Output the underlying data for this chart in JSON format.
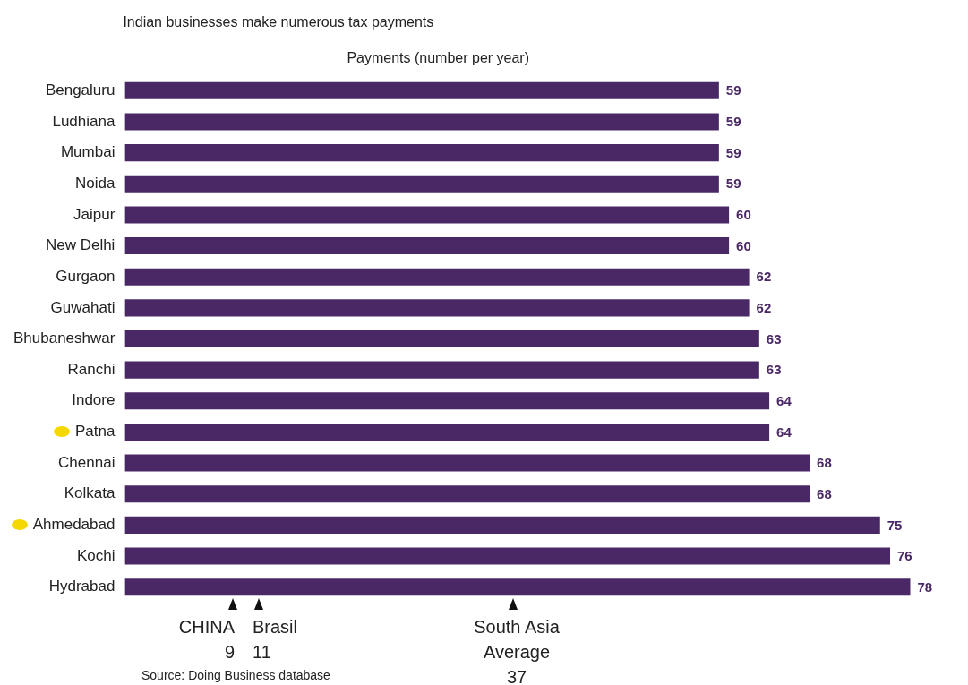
{
  "chart_data": {
    "type": "bar",
    "orientation": "horizontal",
    "title": "Indian businesses make numerous tax payments",
    "subtitle": "Payments (number per year)",
    "categories": [
      "Bengaluru",
      "Ludhiana",
      "Mumbai",
      "Noida",
      "Jaipur",
      "New Delhi",
      "Gurgaon",
      "Guwahati",
      "Bhubaneshwar",
      "Ranchi",
      "Indore",
      "Patna",
      "Chennai",
      "Kolkata",
      "Ahmedabad",
      "Kochi",
      "Hydrabad"
    ],
    "values": [
      59,
      59,
      59,
      59,
      60,
      60,
      62,
      62,
      63,
      63,
      64,
      64,
      68,
      68,
      75,
      76,
      78
    ],
    "color": "#4a2866",
    "data_labels": true,
    "annotations": [
      "CHINA\n9",
      "Brasil\n11",
      "South Asia\nAverage\n37",
      "Source: Doing Business database"
    ]
  }
}
